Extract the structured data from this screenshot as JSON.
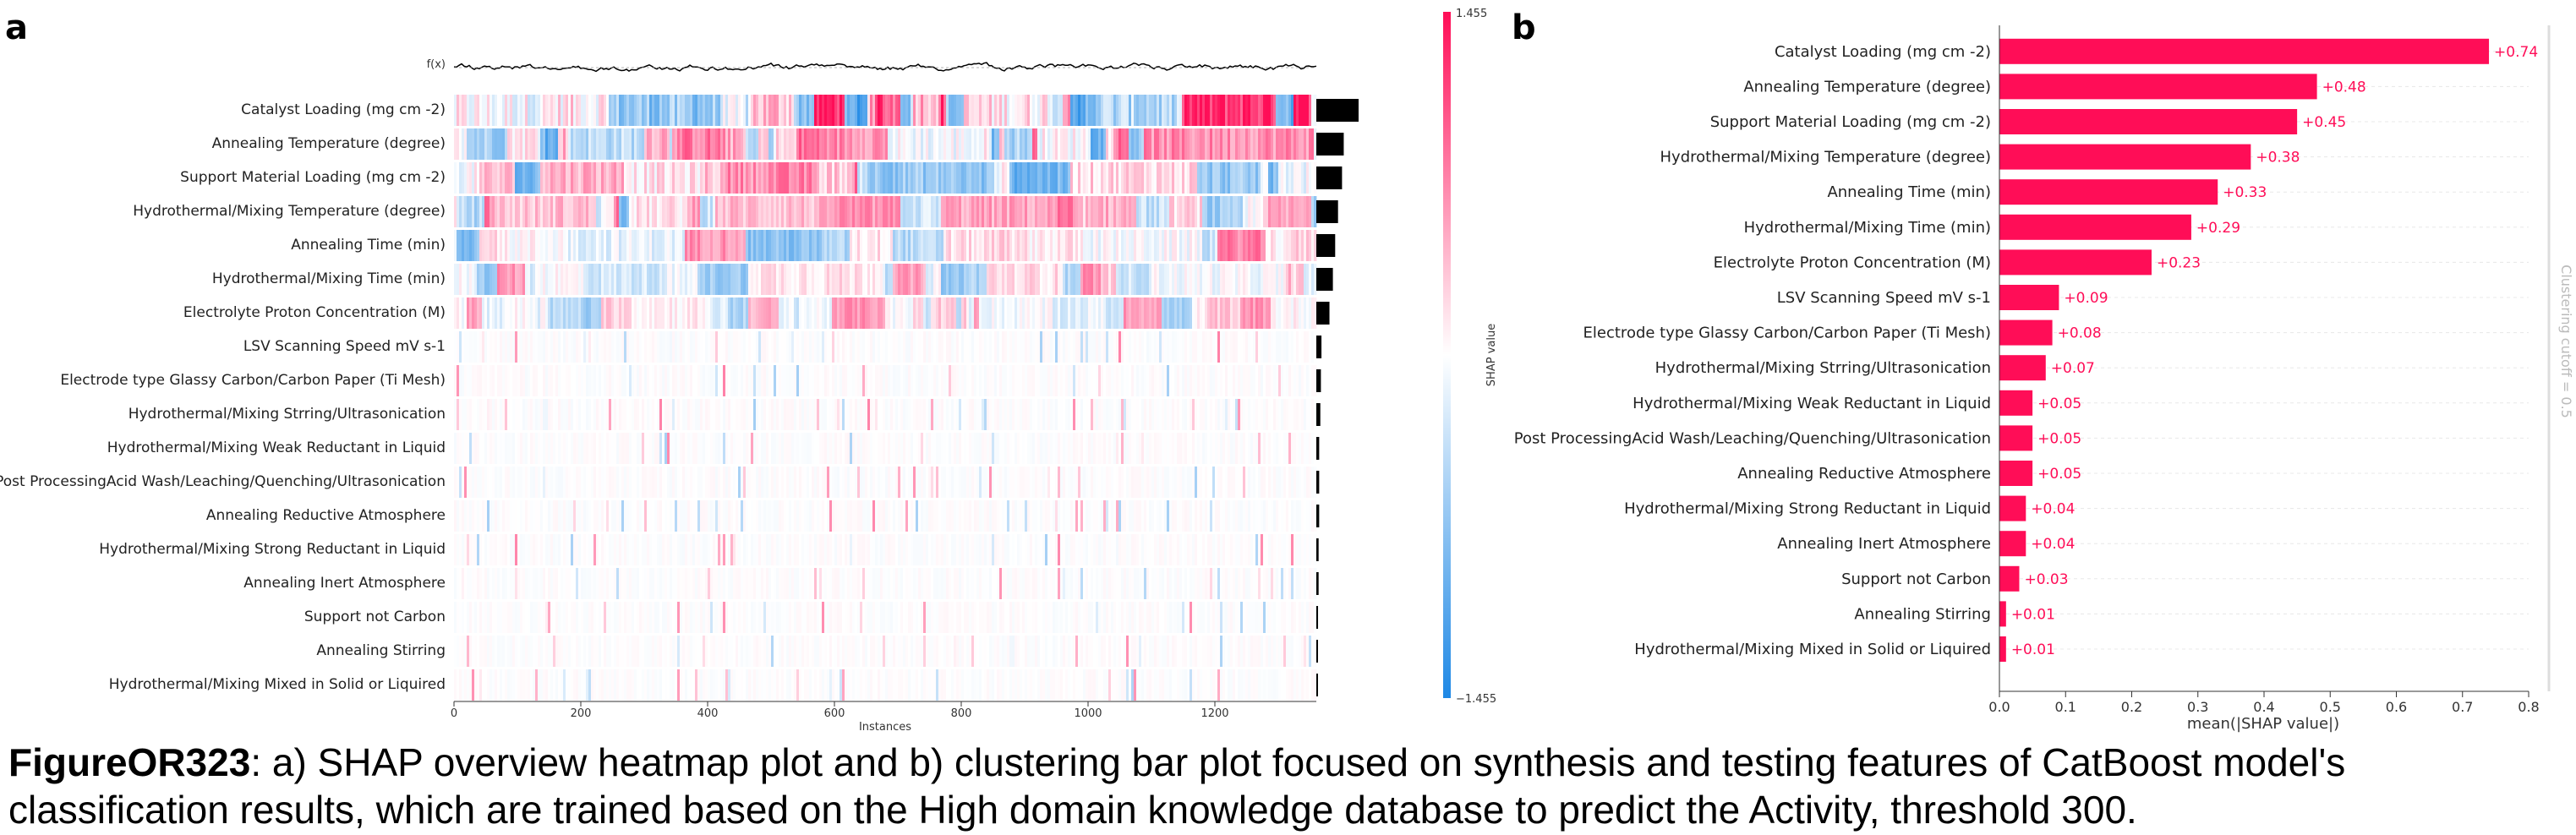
{
  "panel_a": {
    "letter": "a"
  },
  "panel_b": {
    "letter": "b"
  },
  "caption": {
    "figure_id": "FigureOR323",
    "text": ": a) SHAP overview heatmap plot and b) clustering bar plot focused on synthesis and testing features of CatBoost model's classification results, which are trained based on the High domain knowledge database to predict the Activity, threshold 300."
  },
  "colors": {
    "positive": "#ff0d57",
    "negative": "#1e88e5",
    "importance_bar": "#000000",
    "label_positive": "#ff0d57"
  },
  "chart_data": [
    {
      "type": "heatmap",
      "fx_label": "f(x)",
      "xlabel": "Instances",
      "xticks": [
        0,
        200,
        400,
        600,
        800,
        1000,
        1200
      ],
      "xlim": [
        0,
        1360
      ],
      "n_instances": 1360,
      "colorbar": {
        "label": "SHAP value",
        "max_label": "1.455",
        "min_label": "−1.455",
        "max": 1.455,
        "min": -1.455
      },
      "features": [
        "Catalyst Loading (mg cm -2)",
        "Annealing Temperature (degree)",
        "Support Material Loading (mg cm -2)",
        "Hydrothermal/Mixing Temperature (degree)",
        "Annealing Time (min)",
        "Hydrothermal/Mixing Time (min)",
        "Electrolyte Proton Concentration (M)",
        "LSV Scanning Speed mV s-1",
        "Electrode type Glassy Carbon/Carbon Paper (Ti Mesh)",
        "Hydrothermal/Mixing Strring/Ultrasonication",
        "Hydrothermal/Mixing Weak Reductant in Liquid",
        "Post ProcessingAcid Wash/Leaching/Quenching/Ultrasonication",
        "Annealing Reductive Atmosphere",
        "Hydrothermal/Mixing Strong Reductant in Liquid",
        "Annealing Inert Atmosphere",
        "Support not Carbon",
        "Annealing Stirring",
        "Hydrothermal/Mixing Mixed in Solid or Liquired"
      ],
      "importance": [
        0.74,
        0.48,
        0.45,
        0.38,
        0.33,
        0.29,
        0.23,
        0.09,
        0.08,
        0.07,
        0.05,
        0.05,
        0.05,
        0.04,
        0.04,
        0.03,
        0.01,
        0.01
      ]
    },
    {
      "type": "bar",
      "orientation": "horizontal",
      "xlabel": "mean(|SHAP value|)",
      "xticks": [
        "0.0",
        "0.1",
        "0.2",
        "0.3",
        "0.4",
        "0.5",
        "0.6",
        "0.7",
        "0.8"
      ],
      "xlim": [
        0,
        0.8
      ],
      "cutoff_label": "Clustering cutoff = 0.5",
      "categories": [
        "Catalyst Loading (mg cm -2)",
        "Annealing Temperature (degree)",
        "Support Material Loading (mg cm -2)",
        "Hydrothermal/Mixing Temperature (degree)",
        "Annealing Time (min)",
        "Hydrothermal/Mixing Time (min)",
        "Electrolyte Proton Concentration (M)",
        "LSV Scanning Speed mV s-1",
        "Electrode type Glassy Carbon/Carbon Paper (Ti Mesh)",
        "Hydrothermal/Mixing Strring/Ultrasonication",
        "Hydrothermal/Mixing Weak Reductant in Liquid",
        "Post ProcessingAcid Wash/Leaching/Quenching/Ultrasonication",
        "Annealing Reductive Atmosphere",
        "Hydrothermal/Mixing Strong Reductant in Liquid",
        "Annealing Inert Atmosphere",
        "Support not Carbon",
        "Annealing Stirring",
        "Hydrothermal/Mixing Mixed in Solid or Liquired"
      ],
      "values": [
        0.74,
        0.48,
        0.45,
        0.38,
        0.33,
        0.29,
        0.23,
        0.09,
        0.08,
        0.07,
        0.05,
        0.05,
        0.05,
        0.04,
        0.04,
        0.03,
        0.01,
        0.01
      ],
      "value_labels": [
        "+0.74",
        "+0.48",
        "+0.45",
        "+0.38",
        "+0.33",
        "+0.29",
        "+0.23",
        "+0.09",
        "+0.08",
        "+0.07",
        "+0.05",
        "+0.05",
        "+0.05",
        "+0.04",
        "+0.04",
        "+0.03",
        "+0.01",
        "+0.01"
      ]
    }
  ]
}
